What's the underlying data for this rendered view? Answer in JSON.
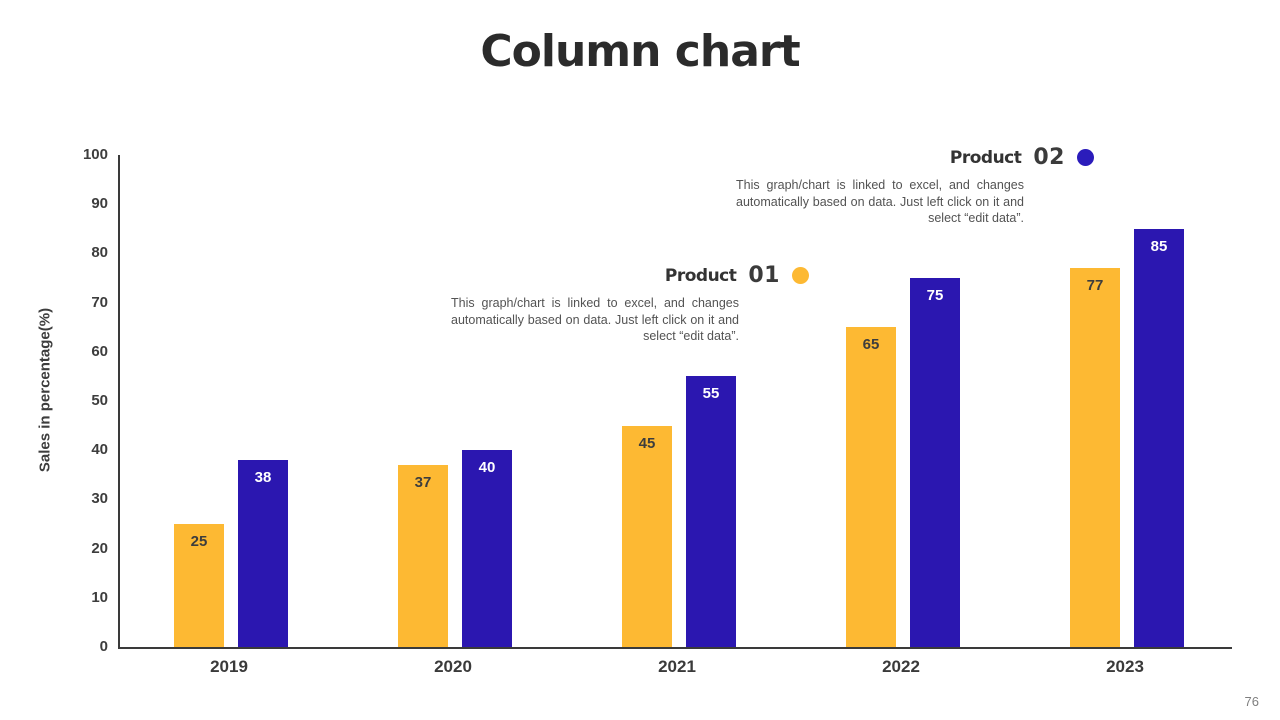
{
  "slide": {
    "title": "Column chart",
    "page_number": "76"
  },
  "chart_data": {
    "type": "bar",
    "title": "Column chart",
    "categories": [
      "2019",
      "2020",
      "2021",
      "2022",
      "2023"
    ],
    "series": [
      {
        "name": "Product 01",
        "color": "#FDB933",
        "value_label_color": "#3d3d3d",
        "values": [
          25,
          37,
          45,
          65,
          77
        ]
      },
      {
        "name": "Product 02",
        "color": "#2B17B0",
        "value_label_color": "#ffffff",
        "values": [
          38,
          40,
          55,
          75,
          85
        ]
      }
    ],
    "xlabel": "",
    "ylabel": "Sales in percentage(%)",
    "ylim": [
      0,
      100
    ],
    "ytick_step": 10,
    "grid": false,
    "value_labels": "inside top of each bar",
    "legend_position": "floating annotations above chart, right-aligned"
  },
  "annotations": [
    {
      "product_word": "Product",
      "product_number": "01",
      "dot_color": "#FDB933",
      "description": "This graph/chart is linked to excel, and changes automatically based on data. Just left click on it and select “edit data”."
    },
    {
      "product_word": "Product",
      "product_number": "02",
      "dot_color": "#2B1CBB",
      "description": "This graph/chart is linked to excel, and changes automatically based on data. Just left click on it and select “edit data”."
    }
  ]
}
